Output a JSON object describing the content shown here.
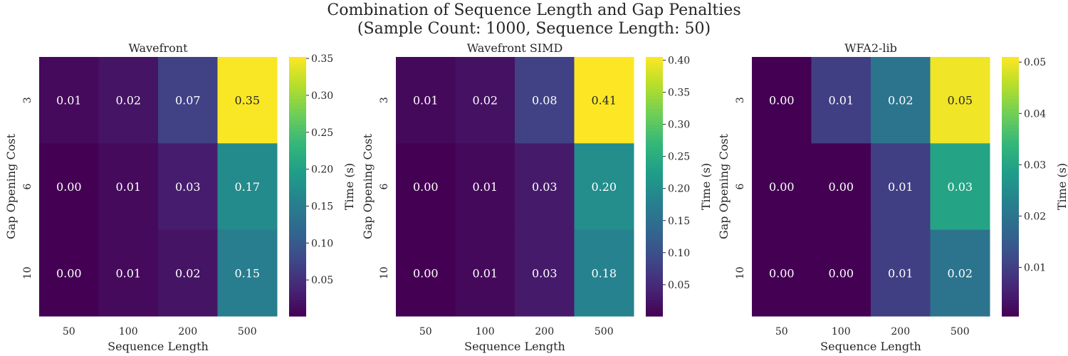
{
  "figure": {
    "title_line1": "Combination of Sequence Length and Gap Penalties",
    "title_line2": "(Sample Count: 1000, Sequence Length: 50)"
  },
  "chart_data": [
    {
      "type": "heatmap",
      "title": "Wavefront",
      "xlabel": "Sequence Length",
      "ylabel": "Gap Opening Cost",
      "colorbar_label": "Time (s)",
      "colormap": "viridis",
      "x_categories": [
        "50",
        "100",
        "200",
        "500"
      ],
      "y_categories": [
        "3",
        "6",
        "10"
      ],
      "values": [
        [
          0.01,
          0.02,
          0.07,
          0.35
        ],
        [
          0.0,
          0.01,
          0.03,
          0.17
        ],
        [
          0.0,
          0.01,
          0.02,
          0.15
        ]
      ],
      "value_labels": [
        [
          "0.01",
          "0.02",
          "0.07",
          "0.35"
        ],
        [
          "0.00",
          "0.01",
          "0.03",
          "0.17"
        ],
        [
          "0.00",
          "0.01",
          "0.02",
          "0.15"
        ]
      ],
      "color_range": [
        0.001,
        0.352
      ],
      "colorbar_ticks": [
        0.05,
        0.1,
        0.15,
        0.2,
        0.25,
        0.3,
        0.35
      ],
      "colorbar_tick_labels": [
        "0.05",
        "0.10",
        "0.15",
        "0.20",
        "0.25",
        "0.30",
        "0.35"
      ]
    },
    {
      "type": "heatmap",
      "title": "Wavefront SIMD",
      "xlabel": "Sequence Length",
      "ylabel": "Gap Opening Cost",
      "colorbar_label": "Time (s)",
      "colormap": "viridis",
      "x_categories": [
        "50",
        "100",
        "200",
        "500"
      ],
      "y_categories": [
        "3",
        "6",
        "10"
      ],
      "values": [
        [
          0.01,
          0.02,
          0.08,
          0.41
        ],
        [
          0.0,
          0.01,
          0.03,
          0.2
        ],
        [
          0.0,
          0.01,
          0.03,
          0.18
        ]
      ],
      "value_labels": [
        [
          "0.01",
          "0.02",
          "0.08",
          "0.41"
        ],
        [
          "0.00",
          "0.01",
          "0.03",
          "0.20"
        ],
        [
          "0.00",
          "0.01",
          "0.03",
          "0.18"
        ]
      ],
      "color_range": [
        0.001,
        0.405
      ],
      "colorbar_ticks": [
        0.05,
        0.1,
        0.15,
        0.2,
        0.25,
        0.3,
        0.35,
        0.4
      ],
      "colorbar_tick_labels": [
        "0.05",
        "0.10",
        "0.15",
        "0.20",
        "0.25",
        "0.30",
        "0.35",
        "0.40"
      ]
    },
    {
      "type": "heatmap",
      "title": "WFA2-lib",
      "xlabel": "Sequence Length",
      "ylabel": "Gap Opening Cost",
      "colorbar_label": "Time (s)",
      "colormap": "viridis",
      "x_categories": [
        "50",
        "100",
        "200",
        "500"
      ],
      "y_categories": [
        "3",
        "6",
        "10"
      ],
      "values": [
        [
          0.0,
          0.01,
          0.02,
          0.05
        ],
        [
          0.0,
          0.0,
          0.01,
          0.03
        ],
        [
          0.0,
          0.0,
          0.01,
          0.02
        ]
      ],
      "value_labels": [
        [
          "0.00",
          "0.01",
          "0.02",
          "0.05"
        ],
        [
          "0.00",
          "0.00",
          "0.01",
          "0.03"
        ],
        [
          "0.00",
          "0.00",
          "0.01",
          "0.02"
        ]
      ],
      "color_range": [
        0.0005,
        0.051
      ],
      "colorbar_ticks": [
        0.01,
        0.02,
        0.03,
        0.04,
        0.05
      ],
      "colorbar_tick_labels": [
        "0.01",
        "0.02",
        "0.03",
        "0.04",
        "0.05"
      ]
    }
  ]
}
